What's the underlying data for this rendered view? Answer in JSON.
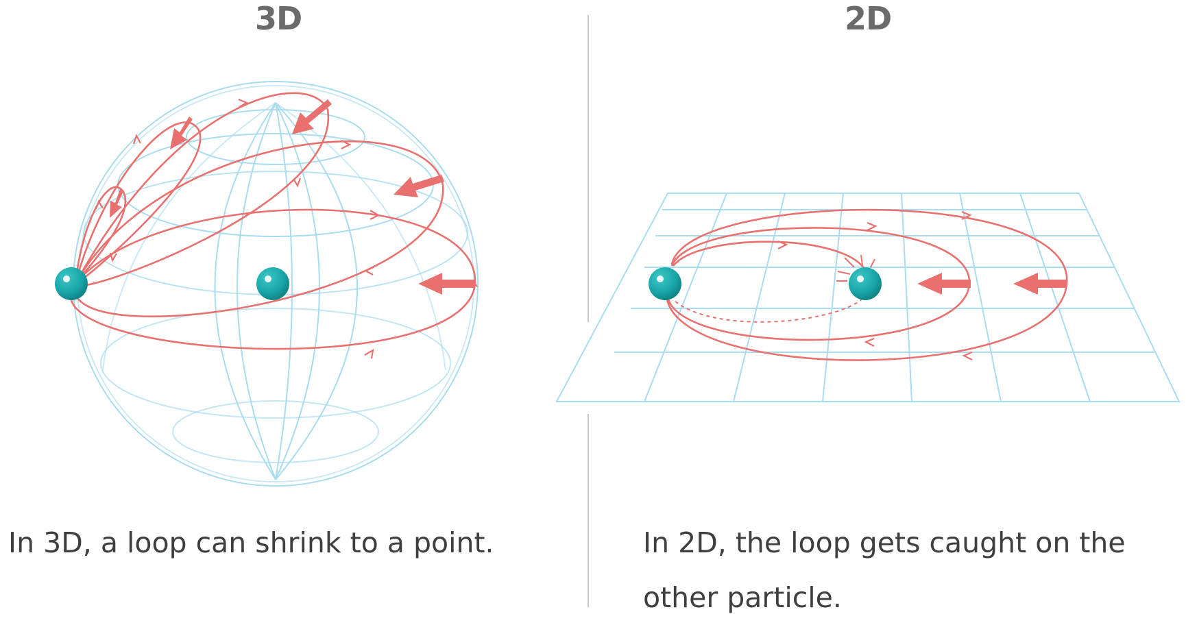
{
  "panels": [
    {
      "title": "3D",
      "caption": "In 3D, a loop can shrink to a point."
    },
    {
      "title": "2D",
      "caption": "In 2D, the loop gets caught on the other particle."
    }
  ],
  "colors": {
    "grid": "#a9dcef",
    "loop": "#e8716f",
    "particle": "#1aa7a9",
    "divider": "#c8c8c8",
    "title": "#6b6b6b",
    "caption": "#3f3f3f"
  }
}
